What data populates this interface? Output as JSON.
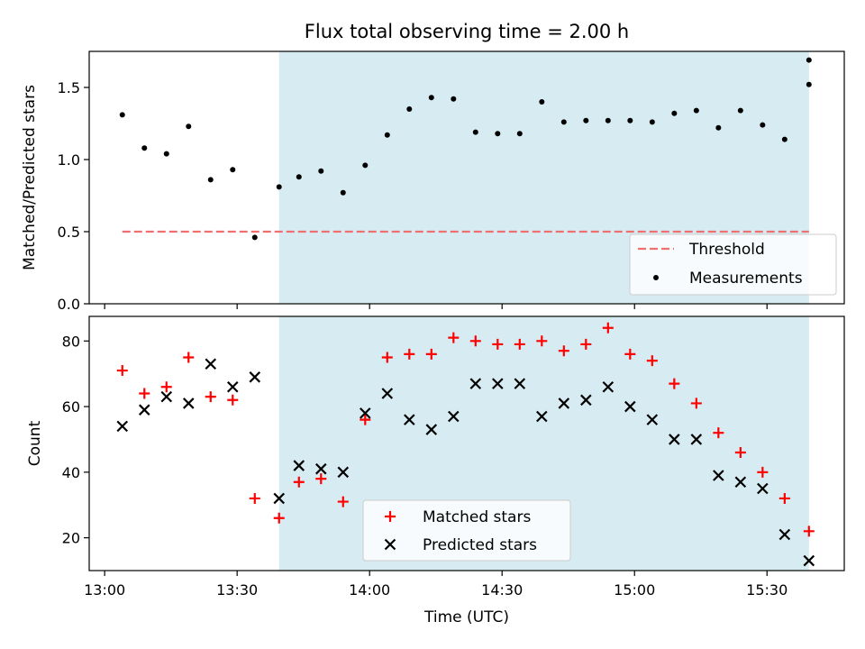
{
  "title": "Flux total observing time = 2.00 h",
  "colors": {
    "band": "#add8e6",
    "threshold": "#f07070",
    "measurement": "#000000",
    "matched": "#ff0000",
    "predicted": "#000000"
  },
  "chart_data": [
    {
      "type": "scatter",
      "ylabel": "Matched/Predicted stars",
      "ylim": [
        0,
        1.75
      ],
      "yticks": [
        {
          "v": 0.0,
          "label": "0.0"
        },
        {
          "v": 0.5,
          "label": "0.5"
        },
        {
          "v": 1.0,
          "label": "1.0"
        },
        {
          "v": 1.5,
          "label": "1.5"
        }
      ],
      "x_range_minutes": [
        -3.5,
        167.5
      ],
      "shaded_interval_minutes": [
        39.5,
        159.5
      ],
      "threshold": {
        "label": "Threshold",
        "value": 0.5,
        "x_from": 4,
        "x_to": 159.5
      },
      "legend_position": "lower-right",
      "series": [
        {
          "name": "Measurements",
          "x": [
            4,
            9,
            14,
            19,
            24,
            29,
            34,
            39.5,
            44,
            49,
            54,
            59,
            64,
            69,
            74,
            79,
            84,
            89,
            94,
            99,
            104,
            109,
            114,
            119,
            124,
            129,
            134,
            139,
            144,
            149,
            154,
            159.5
          ],
          "y": [
            1.31,
            1.08,
            1.04,
            1.23,
            0.86,
            0.93,
            0.46,
            0.81,
            0.88,
            0.92,
            0.77,
            0.96,
            1.17,
            1.35,
            1.43,
            1.42,
            1.19,
            1.18,
            1.18,
            1.4,
            1.26,
            1.27,
            1.27,
            1.27,
            1.26,
            1.32,
            1.34,
            1.22,
            1.34,
            1.24,
            1.14,
            1.52
          ]
        }
      ],
      "extra_point": {
        "x": 159.5,
        "y": 1.69
      }
    },
    {
      "type": "scatter",
      "xlabel": "Time (UTC)",
      "ylabel": "Count",
      "ylim": [
        10,
        87.5
      ],
      "yticks": [
        {
          "v": 20,
          "label": "20"
        },
        {
          "v": 40,
          "label": "40"
        },
        {
          "v": 60,
          "label": "60"
        },
        {
          "v": 80,
          "label": "80"
        }
      ],
      "x_range_minutes": [
        -3.5,
        167.5
      ],
      "xticks": [
        {
          "v": 0,
          "label": "13:00"
        },
        {
          "v": 30,
          "label": "13:30"
        },
        {
          "v": 60,
          "label": "14:00"
        },
        {
          "v": 90,
          "label": "14:30"
        },
        {
          "v": 120,
          "label": "15:00"
        },
        {
          "v": 150,
          "label": "15:30"
        }
      ],
      "shaded_interval_minutes": [
        39.5,
        159.5
      ],
      "legend_position": "lower-center",
      "series": [
        {
          "name": "Matched stars",
          "x": [
            4,
            9,
            14,
            19,
            24,
            29,
            34,
            39.5,
            44,
            49,
            54,
            59,
            64,
            69,
            74,
            79,
            84,
            89,
            94,
            99,
            104,
            109,
            114,
            119,
            124,
            129,
            134,
            139,
            144,
            149,
            154,
            159.5
          ],
          "y": [
            71,
            64,
            66,
            75,
            63,
            62,
            32,
            26,
            37,
            38,
            31,
            56,
            75,
            76,
            76,
            81,
            80,
            79,
            79,
            80,
            77,
            79,
            84,
            76,
            74,
            67,
            61,
            52,
            46,
            40,
            32,
            22
          ]
        },
        {
          "name": "Predicted stars",
          "x": [
            4,
            9,
            14,
            19,
            24,
            29,
            34,
            39.5,
            44,
            49,
            54,
            59,
            64,
            69,
            74,
            79,
            84,
            89,
            94,
            99,
            104,
            109,
            114,
            119,
            124,
            129,
            134,
            139,
            144,
            149,
            154,
            159.5
          ],
          "y": [
            54,
            59,
            63,
            61,
            73,
            66,
            69,
            32,
            42,
            41,
            40,
            58,
            64,
            56,
            53,
            57,
            67,
            67,
            67,
            57,
            61,
            62,
            66,
            60,
            56,
            50,
            50,
            39,
            37,
            35,
            21,
            13
          ]
        }
      ]
    }
  ]
}
